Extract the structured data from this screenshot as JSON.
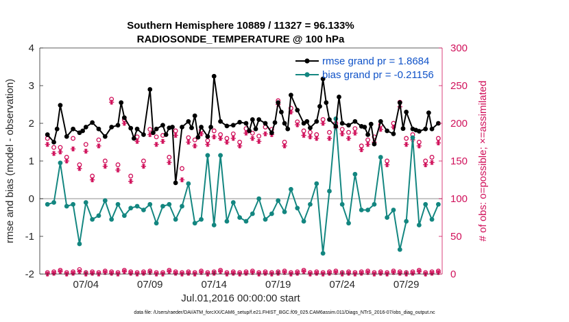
{
  "chart_data": {
    "type": "line",
    "title_line1": "Southern Hemisphere 10889 / 11327 = 96.133%",
    "title_line2": "RADIOSONDE_TEMPERATURE @ 100 hPa",
    "ylabel": "rmse and bias (model - observation)",
    "ylabel_right": "# of obs: o=possible; ×=assimilated",
    "xlabel": "Jul.01,2016 00:00:00 start",
    "footer": "data file: /Users/raeder/DAI/ATM_forcXX/CAM6_setup/f.e21.FHIST_BGC.f09_025.CAM6assim.011/Diags_NTrS_2016-07/obs_diag_output.nc",
    "ylim": [
      -2,
      4
    ],
    "ylim_right": [
      0,
      300
    ],
    "yticks": [
      "4",
      "3",
      "2",
      "1",
      "0",
      "-1",
      "-2"
    ],
    "yticks_right": [
      "300",
      "250",
      "200",
      "150",
      "100",
      "50",
      "0"
    ],
    "xlim": [
      0.4,
      31.8
    ],
    "xticks": [
      {
        "pos": 4,
        "label": "07/04"
      },
      {
        "pos": 9,
        "label": "07/09"
      },
      {
        "pos": 14,
        "label": "07/14"
      },
      {
        "pos": 19,
        "label": "07/19"
      },
      {
        "pos": 24,
        "label": "07/24"
      },
      {
        "pos": 29,
        "label": "07/29"
      }
    ],
    "colors": {
      "rmse": "#000000",
      "bias": "#138680",
      "obs": "#d0105a",
      "legend_text": "#0f52c8",
      "zero_line": "#b3b3b3"
    },
    "legend": [
      {
        "name": "rmse grand pr = 1.8684"
      },
      {
        "name": "bias grand pr = -0.21156"
      }
    ],
    "series": [
      {
        "name": "rmse",
        "x": [
          1.0,
          1.5,
          1.75,
          2.0,
          2.5,
          3.0,
          3.5,
          3.75,
          4.0,
          4.5,
          5.0,
          5.5,
          6.0,
          6.5,
          6.75,
          7.0,
          7.5,
          7.75,
          8.0,
          8.5,
          9.0,
          9.25,
          9.5,
          10.0,
          10.25,
          10.5,
          10.75,
          11.0,
          11.5,
          12.0,
          12.25,
          12.5,
          12.75,
          13.0,
          13.5,
          13.75,
          14.0,
          14.5,
          15.0,
          15.5,
          16.0,
          16.5,
          16.75,
          17.0,
          17.25,
          17.5,
          18.0,
          18.5,
          18.75,
          19.0,
          19.25,
          19.5,
          19.75,
          20.0,
          20.5,
          21.0,
          21.25,
          21.5,
          22.0,
          22.25,
          22.5,
          22.75,
          23.0,
          23.5,
          23.75,
          24.0,
          24.5,
          25.0,
          25.5,
          25.75,
          26.0,
          26.25,
          26.5,
          27.0,
          27.5,
          28.0,
          28.5,
          28.75,
          29.0,
          29.5,
          29.75,
          30.0,
          30.5,
          30.75,
          31.0,
          31.5
        ],
        "values": [
          1.7,
          1.5,
          1.85,
          2.48,
          1.65,
          1.85,
          1.75,
          1.8,
          1.9,
          2.02,
          1.85,
          1.65,
          1.9,
          1.95,
          2.55,
          2.15,
          1.87,
          1.6,
          1.85,
          1.7,
          2.9,
          1.75,
          1.85,
          1.95,
          1.7,
          1.88,
          1.9,
          0.42,
          1.9,
          2.05,
          1.88,
          2.2,
          1.63,
          1.9,
          1.65,
          1.9,
          3.25,
          2.05,
          1.93,
          1.95,
          2.03,
          2.0,
          1.8,
          2.1,
          1.85,
          2.1,
          2.0,
          1.75,
          2.02,
          2.55,
          2.3,
          2.0,
          1.85,
          2.75,
          2.35,
          2.0,
          2.05,
          1.88,
          2.05,
          2.45,
          3.18,
          2.55,
          2.1,
          1.92,
          2.7,
          2.0,
          1.95,
          2.05,
          1.92,
          1.9,
          1.7,
          1.98,
          1.45,
          2.05,
          1.8,
          1.72,
          2.55,
          1.86,
          2.3,
          1.85,
          1.82,
          1.79,
          1.85,
          2.28,
          1.85,
          2.0
        ]
      },
      {
        "name": "bias",
        "x": [
          1.0,
          1.5,
          2.0,
          2.5,
          3.0,
          3.5,
          4.0,
          4.5,
          5.0,
          5.5,
          6.0,
          6.5,
          7.0,
          7.5,
          8.0,
          8.5,
          9.0,
          9.5,
          10.0,
          10.5,
          11.0,
          11.5,
          12.0,
          12.5,
          13.0,
          13.5,
          14.0,
          14.5,
          15.0,
          15.5,
          16.0,
          16.5,
          17.0,
          17.5,
          18.0,
          18.5,
          19.0,
          19.5,
          20.0,
          20.5,
          21.0,
          21.5,
          22.0,
          22.5,
          23.0,
          23.5,
          24.0,
          24.5,
          25.0,
          25.5,
          26.0,
          26.5,
          27.0,
          27.5,
          28.0,
          28.5,
          29.0,
          29.5,
          30.0,
          30.5,
          31.0,
          31.5
        ],
        "values": [
          -0.15,
          -0.1,
          0.95,
          -0.2,
          -0.15,
          -1.2,
          -0.1,
          -0.55,
          -0.45,
          -0.05,
          -0.55,
          -0.15,
          -0.45,
          -0.25,
          -0.2,
          -0.3,
          -0.15,
          -0.65,
          -0.2,
          -0.15,
          -0.55,
          -0.2,
          0.4,
          -0.65,
          -0.55,
          1.15,
          -0.7,
          1.15,
          -0.6,
          -0.1,
          -0.5,
          -0.6,
          -0.4,
          0.0,
          -0.55,
          -0.4,
          -0.05,
          -0.35,
          0.25,
          -0.25,
          -0.6,
          -0.15,
          0.4,
          -1.45,
          0.2,
          2.12,
          -0.15,
          -0.65,
          0.65,
          -0.3,
          -0.3,
          -0.15,
          1.1,
          -0.5,
          -0.3,
          -1.35,
          -0.6,
          1.62,
          -0.7,
          -0.15,
          -0.55,
          -0.15
        ]
      },
      {
        "name": "obs_possible",
        "x": [
          1.0,
          1.5,
          2.0,
          2.5,
          3.0,
          3.5,
          4.0,
          4.5,
          5.0,
          5.5,
          6.0,
          6.5,
          7.0,
          7.5,
          8.0,
          8.5,
          9.0,
          9.5,
          10.0,
          10.5,
          11.0,
          11.5,
          12.0,
          12.5,
          13.0,
          13.5,
          14.0,
          14.5,
          15.0,
          15.5,
          16.0,
          16.5,
          17.0,
          17.5,
          18.0,
          18.5,
          19.0,
          19.5,
          20.0,
          20.5,
          21.0,
          21.5,
          22.0,
          22.5,
          23.0,
          23.5,
          24.0,
          24.5,
          25.0,
          25.5,
          26.0,
          26.5,
          27.0,
          27.5,
          28.0,
          28.5,
          29.0,
          29.5,
          30.0,
          30.5,
          31.0,
          31.5
        ],
        "values": [
          180,
          168,
          168,
          155,
          180,
          145,
          172,
          130,
          178,
          150,
          232,
          145,
          205,
          130,
          182,
          150,
          192,
          182,
          184,
          155,
          190,
          140,
          181,
          178,
          191,
          177,
          190,
          185,
          180,
          186,
          175,
          193,
          187,
          183,
          195,
          192,
          230,
          175,
          220,
          202,
          190,
          188,
          185,
          205,
          188,
          200,
          192,
          188,
          193,
          170,
          178,
          182,
          198,
          150,
          200,
          228,
          180,
          185,
          175,
          150,
          155,
          180
        ]
      },
      {
        "name": "obs_assimilated",
        "x": [
          1.0,
          1.5,
          2.0,
          2.5,
          3.0,
          3.5,
          4.0,
          4.5,
          5.0,
          5.5,
          6.0,
          6.5,
          7.0,
          7.5,
          8.0,
          8.5,
          9.0,
          9.5,
          10.0,
          10.5,
          11.0,
          11.5,
          12.0,
          12.5,
          13.0,
          13.5,
          14.0,
          14.5,
          15.0,
          15.5,
          16.0,
          16.5,
          17.0,
          17.5,
          18.0,
          18.5,
          19.0,
          19.5,
          20.0,
          20.5,
          21.0,
          21.5,
          22.0,
          22.5,
          23.0,
          23.5,
          24.0,
          24.5,
          25.0,
          25.5,
          26.0,
          26.5,
          27.0,
          27.5,
          28.0,
          28.5,
          29.0,
          29.5,
          30.0,
          30.5,
          31.0,
          31.5
        ],
        "values": [
          172,
          160,
          162,
          150,
          166,
          140,
          163,
          125,
          170,
          143,
          228,
          138,
          200,
          123,
          176,
          143,
          185,
          172,
          176,
          148,
          184,
          125,
          175,
          170,
          186,
          172,
          182,
          180,
          175,
          180,
          170,
          187,
          180,
          176,
          186,
          185,
          225,
          170,
          215,
          198,
          184,
          182,
          180,
          200,
          180,
          194,
          186,
          180,
          187,
          165,
          172,
          175,
          192,
          145,
          195,
          222,
          172,
          178,
          170,
          145,
          148,
          174
        ]
      },
      {
        "name": "obs_possible_low",
        "x": [
          1.0,
          1.5,
          2.0,
          2.5,
          3.0,
          3.5,
          4.0,
          4.5,
          5.0,
          5.5,
          6.0,
          6.5,
          7.0,
          7.5,
          8.0,
          8.5,
          9.0,
          9.5,
          10.0,
          10.5,
          11.0,
          11.5,
          12.0,
          12.5,
          13.0,
          13.5,
          14.0,
          14.5,
          15.0,
          15.5,
          16.0,
          16.5,
          17.0,
          17.5,
          18.0,
          18.5,
          19.0,
          19.5,
          20.0,
          20.5,
          21.0,
          21.5,
          22.0,
          22.5,
          23.0,
          23.5,
          24.0,
          24.5,
          25.0,
          25.5,
          26.0,
          26.5,
          27.0,
          27.5,
          28.0,
          28.5,
          29.0,
          29.5,
          30.0,
          30.5,
          31.0,
          31.5
        ],
        "values": [
          2,
          3,
          5,
          2,
          3,
          6,
          2,
          3,
          2,
          4,
          3,
          2,
          5,
          3,
          2,
          3,
          4,
          2,
          2,
          5,
          3,
          2,
          3,
          2,
          4,
          2,
          3,
          5,
          2,
          3,
          2,
          3,
          4,
          2,
          3,
          2,
          3,
          4,
          2,
          3,
          5,
          2,
          3,
          2,
          3,
          4,
          2,
          3,
          2,
          3,
          4,
          2,
          3,
          2,
          4,
          3,
          2,
          3,
          5,
          2,
          3,
          4
        ]
      },
      {
        "name": "obs_assimilated_low",
        "x": [
          1.0,
          1.5,
          2.0,
          2.5,
          3.0,
          3.5,
          4.0,
          4.5,
          5.0,
          5.5,
          6.0,
          6.5,
          7.0,
          7.5,
          8.0,
          8.5,
          9.0,
          9.5,
          10.0,
          10.5,
          11.0,
          11.5,
          12.0,
          12.5,
          13.0,
          13.5,
          14.0,
          14.5,
          15.0,
          15.5,
          16.0,
          16.5,
          17.0,
          17.5,
          18.0,
          18.5,
          19.0,
          19.5,
          20.0,
          20.5,
          21.0,
          21.5,
          22.0,
          22.5,
          23.0,
          23.5,
          24.0,
          24.5,
          25.0,
          25.5,
          26.0,
          26.5,
          27.0,
          27.5,
          28.0,
          28.5,
          29.0,
          29.5,
          30.0,
          30.5,
          31.0,
          31.5
        ],
        "values": [
          0,
          1,
          3,
          0,
          1,
          3,
          0,
          1,
          0,
          2,
          1,
          0,
          3,
          1,
          0,
          1,
          2,
          0,
          0,
          3,
          1,
          0,
          1,
          0,
          2,
          0,
          1,
          3,
          0,
          1,
          0,
          1,
          2,
          0,
          1,
          0,
          1,
          2,
          0,
          1,
          3,
          0,
          1,
          0,
          1,
          2,
          0,
          1,
          0,
          1,
          2,
          0,
          1,
          0,
          2,
          1,
          0,
          1,
          3,
          0,
          1,
          2
        ]
      }
    ]
  }
}
